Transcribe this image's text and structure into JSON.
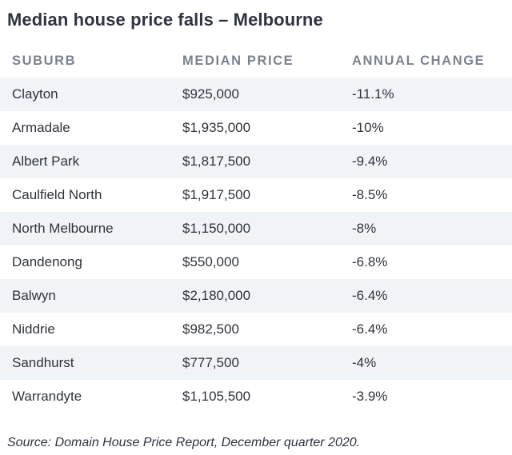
{
  "chart_data": {
    "type": "table",
    "title": "Median house price falls – Melbourne",
    "columns": [
      "SUBURB",
      "MEDIAN PRICE",
      "ANNUAL CHANGE"
    ],
    "rows": [
      [
        "Clayton",
        "$925,000",
        "-11.1%"
      ],
      [
        "Armadale",
        "$1,935,000",
        "-10%"
      ],
      [
        "Albert Park",
        "$1,817,500",
        "-9.4%"
      ],
      [
        "Caulfield North",
        "$1,917,500",
        "-8.5%"
      ],
      [
        "North Melbourne",
        "$1,150,000",
        "-8%"
      ],
      [
        "Dandenong",
        "$550,000",
        "-6.8%"
      ],
      [
        "Balwyn",
        "$2,180,000",
        "-6.4%"
      ],
      [
        "Niddrie",
        "$982,500",
        "-6.4%"
      ],
      [
        "Sandhurst",
        "$777,500",
        "-4%"
      ],
      [
        "Warrandyte",
        "$1,105,500",
        "-3.9%"
      ]
    ],
    "source": "Source: Domain House Price Report, December quarter 2020."
  },
  "colors": {
    "title_text": "#2e3440",
    "header_text": "#7b8390",
    "body_text": "#2f343b",
    "stripe": "#f1f4f6"
  }
}
